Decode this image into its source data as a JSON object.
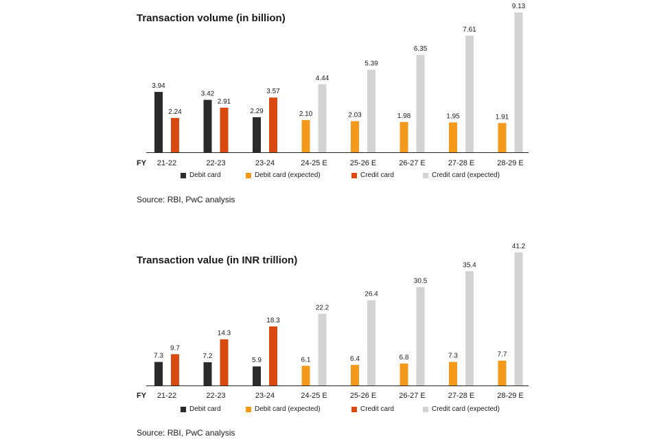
{
  "colors": {
    "debit": "#2b2b2b",
    "debit_expected": "#f39a1c",
    "credit": "#d84a10",
    "credit_expected": "#d3d3d3",
    "axis": "#222222"
  },
  "fy_label": "FY",
  "legend": {
    "debit": "Debit card",
    "debit_expected": "Debit card (expected)",
    "credit": "Credit card",
    "credit_expected": "Credit card (expected)"
  },
  "source_text": "Source: RBI, PwC analysis",
  "chart_data": [
    {
      "type": "bar",
      "title": "Transaction volume (in billion)",
      "categories": [
        "21-22",
        "22-23",
        "23-24",
        "24-25 E",
        "25-26 E",
        "26-27 E",
        "27-28 E",
        "28-29 E"
      ],
      "series": [
        {
          "name": "Debit card",
          "key": "debit",
          "values": [
            3.94,
            3.42,
            2.29,
            null,
            null,
            null,
            null,
            null
          ]
        },
        {
          "name": "Debit card (expected)",
          "key": "debit_expected",
          "values": [
            null,
            null,
            null,
            2.1,
            2.03,
            1.98,
            1.95,
            1.91
          ]
        },
        {
          "name": "Credit card",
          "key": "credit",
          "values": [
            2.24,
            2.91,
            3.57,
            null,
            null,
            null,
            null,
            null
          ]
        },
        {
          "name": "Credit card (expected)",
          "key": "credit_expected",
          "values": [
            null,
            null,
            null,
            4.44,
            5.39,
            6.35,
            7.61,
            9.13
          ]
        }
      ],
      "labels": {
        "debit": [
          "3.94",
          "3.42",
          "2.29",
          "2.10",
          "2.03",
          "1.98",
          "1.95",
          "1.91"
        ],
        "credit": [
          "2.24",
          "2.91",
          "3.57",
          "4.44",
          "5.39",
          "6.35",
          "7.61",
          "9.13"
        ]
      },
      "ylim": [
        0,
        9.13
      ],
      "grid": false,
      "legend_position": "bottom"
    },
    {
      "type": "bar",
      "title": "Transaction value (in INR trillion)",
      "categories": [
        "21-22",
        "22-23",
        "23-24",
        "24-25 E",
        "25-26 E",
        "26-27 E",
        "27-28 E",
        "28-29 E"
      ],
      "series": [
        {
          "name": "Debit card",
          "key": "debit",
          "values": [
            7.3,
            7.2,
            5.9,
            null,
            null,
            null,
            null,
            null
          ]
        },
        {
          "name": "Debit card (expected)",
          "key": "debit_expected",
          "values": [
            null,
            null,
            null,
            6.1,
            6.4,
            6.8,
            7.3,
            7.7
          ]
        },
        {
          "name": "Credit card",
          "key": "credit",
          "values": [
            9.7,
            14.3,
            18.3,
            null,
            null,
            null,
            null,
            null
          ]
        },
        {
          "name": "Credit card (expected)",
          "key": "credit_expected",
          "values": [
            null,
            null,
            null,
            22.2,
            26.4,
            30.5,
            35.4,
            41.2
          ]
        }
      ],
      "labels": {
        "debit": [
          "7.3",
          "7.2",
          "5.9",
          "6.1",
          "6.4",
          "6.8",
          "7.3",
          "7.7"
        ],
        "credit": [
          "9.7",
          "14.3",
          "18.3",
          "22.2",
          "26.4",
          "30.5",
          "35.4",
          "41.2"
        ]
      },
      "ylim": [
        0,
        41.2
      ],
      "grid": false,
      "legend_position": "bottom"
    }
  ]
}
